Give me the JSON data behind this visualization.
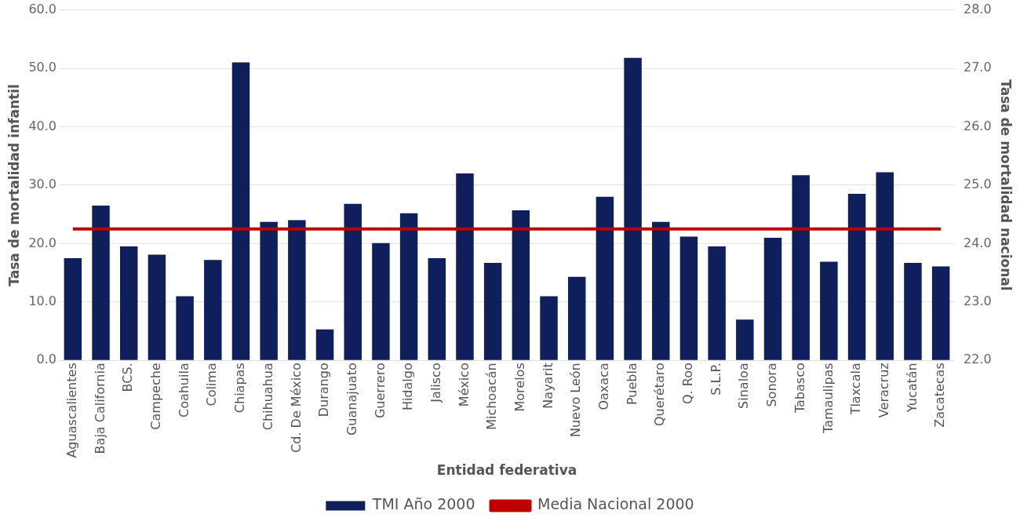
{
  "chart_data": {
    "type": "bar",
    "xlabel": "Entidad federativa",
    "ylabel": "Tasa de mortalidad infantil",
    "y2label": "Tasa de mortalidad nacional",
    "categories": [
      "Aguascalientes",
      "Baja California",
      "BCS.",
      "Campeche",
      "Coahuila",
      "Colima",
      "Chiapas",
      "Chihuahua",
      "Cd. De México",
      "Durango",
      "Guanajuato",
      "Guerrero",
      "Hidalgo",
      "Jalisco",
      "México",
      "Michoacán",
      "Morelos",
      "Nayarit",
      "Nuevo León",
      "Oaxaca",
      "Puebla",
      "Querétaro",
      "Q. Roo",
      "S.L.P.",
      "Sinaloa",
      "Sonora",
      "Tabasco",
      "Tamaulipas",
      "Tlaxcala",
      "Veracruz",
      "Yucatán",
      "Zacatecas"
    ],
    "series": [
      {
        "name": "TMI Año 2000",
        "color": "#0f1f5c",
        "values": [
          17.5,
          26.5,
          19.5,
          18.1,
          11.0,
          17.2,
          51.0,
          23.7,
          24.0,
          5.3,
          26.8,
          20.1,
          25.2,
          17.5,
          32.0,
          16.7,
          25.7,
          11.0,
          14.3,
          28.0,
          51.8,
          23.7,
          21.2,
          19.5,
          7.0,
          21.0,
          31.7,
          16.9,
          28.5,
          32.2,
          16.7,
          16.1
        ]
      },
      {
        "name": "Media Nacional 2000",
        "type": "line",
        "axis": "y2",
        "color": "#c00000",
        "values": [
          24.25,
          24.25,
          24.25,
          24.25,
          24.25,
          24.25,
          24.25,
          24.25,
          24.25,
          24.25,
          24.25,
          24.25,
          24.25,
          24.25,
          24.25,
          24.25,
          24.25,
          24.25,
          24.25,
          24.25,
          24.25,
          24.25,
          24.25,
          24.25,
          24.25,
          24.25,
          24.25,
          24.25,
          24.25,
          24.25,
          24.25,
          24.25
        ]
      }
    ],
    "ylim": [
      0,
      60
    ],
    "yticks": [
      {
        "value": 0,
        "label": "0.0"
      },
      {
        "value": 10,
        "label": "10.0"
      },
      {
        "value": 20,
        "label": "20.0"
      },
      {
        "value": 30,
        "label": "30.0"
      },
      {
        "value": 40,
        "label": "40.0"
      },
      {
        "value": 50,
        "label": "50.0"
      },
      {
        "value": 60,
        "label": "60.0"
      }
    ],
    "y2lim": [
      22,
      28
    ],
    "y2ticks": [
      {
        "value": 22,
        "label": "22.0"
      },
      {
        "value": 23,
        "label": "23.0"
      },
      {
        "value": 24,
        "label": "24.0"
      },
      {
        "value": 25,
        "label": "25.0"
      },
      {
        "value": 26,
        "label": "26.0"
      },
      {
        "value": 27,
        "label": "27.0"
      },
      {
        "value": 28,
        "label": "28.0"
      }
    ],
    "grid": "y",
    "legend": "bottom",
    "marker": "none",
    "line_style": "solid"
  }
}
